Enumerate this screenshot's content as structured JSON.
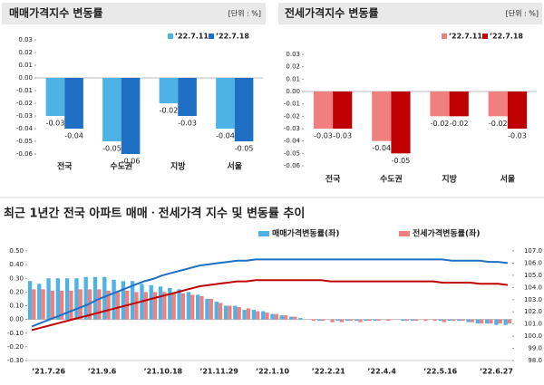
{
  "chart_data": [
    {
      "type": "bar",
      "title": "매매가격지수 변동률",
      "unit": "[단위 : %]",
      "categories": [
        "전국",
        "수도권",
        "지방",
        "서울"
      ],
      "series": [
        {
          "name": "’22.7.11",
          "color": "#4db3e6",
          "values": [
            -0.03,
            -0.05,
            -0.02,
            -0.04
          ]
        },
        {
          "name": "’22.7.18",
          "color": "#1f6fc4",
          "values": [
            -0.04,
            -0.06,
            -0.03,
            -0.05
          ]
        }
      ],
      "ylim": [
        -0.06,
        0.03
      ],
      "yticks": [
        0.03,
        0.02,
        0.01,
        {
          "value": 0,
          "label": "0.00"
        },
        -0.01,
        -0.02,
        -0.03,
        -0.04,
        -0.05,
        -0.06
      ]
    },
    {
      "type": "bar",
      "title": "전세가격지수 변동률",
      "unit": "[단위 : %]",
      "categories": [
        "전국",
        "수도권",
        "지방",
        "서울"
      ],
      "series": [
        {
          "name": "’22.7.11",
          "color": "#f08080",
          "values": [
            -0.03,
            -0.04,
            -0.02,
            -0.02
          ]
        },
        {
          "name": "’22.7.18",
          "color": "#c00000",
          "values": [
            -0.03,
            -0.05,
            -0.02,
            -0.03
          ]
        }
      ],
      "ylim": [
        -0.06,
        0.03
      ],
      "yticks": [
        0.03,
        0.02,
        0.01,
        {
          "value": 0,
          "label": "0.00"
        },
        -0.01,
        -0.02,
        -0.03,
        -0.04,
        -0.05,
        -0.06
      ]
    },
    {
      "type": "bar",
      "title": "최근 1년간 전국 아파트 매매ㆍ전세가격 지수 및 변동률 추이",
      "categories": [
        "’21.7.26",
        null,
        null,
        null,
        null,
        null,
        "’21.9.6",
        null,
        null,
        null,
        null,
        null,
        "’21.10.18",
        null,
        null,
        null,
        null,
        null,
        "’21.11.29",
        null,
        null,
        null,
        null,
        null,
        "’22.1.10",
        null,
        null,
        null,
        null,
        null,
        "’22.2.21",
        null,
        null,
        null,
        null,
        null,
        "’22.4.4",
        null,
        null,
        null,
        null,
        null,
        "’22.5.16",
        null,
        null,
        null,
        null,
        null,
        "’22.6.27",
        null,
        null,
        null
      ],
      "series": [
        {
          "name": "매매가격변동률(좌)",
          "color": "#4db3e6",
          "values": [
            0.28,
            0.26,
            0.3,
            0.3,
            0.3,
            0.3,
            0.31,
            0.31,
            0.31,
            0.29,
            0.28,
            0.28,
            0.26,
            0.25,
            0.24,
            0.23,
            0.22,
            0.2,
            0.18,
            0.15,
            0.13,
            0.1,
            0.1,
            0.07,
            0.07,
            0.06,
            0.04,
            0.03,
            0.02,
            0.01,
            0.0,
            -0.01,
            0.0,
            -0.01,
            -0.01,
            -0.01,
            -0.01,
            -0.01,
            0.0,
            0.0,
            -0.01,
            -0.01,
            0.0,
            0.0,
            -0.01,
            -0.01,
            -0.01,
            -0.02,
            -0.03,
            -0.03,
            -0.04,
            -0.04
          ]
        },
        {
          "name": "전세가격변동률(좌)",
          "color": "#f08080",
          "values": [
            0.22,
            0.22,
            0.21,
            0.21,
            0.21,
            0.22,
            0.22,
            0.22,
            0.21,
            0.2,
            0.21,
            0.2,
            0.2,
            0.2,
            0.2,
            0.19,
            0.19,
            0.18,
            0.17,
            0.15,
            0.12,
            0.1,
            0.09,
            0.08,
            0.06,
            0.05,
            0.04,
            0.03,
            0.02,
            0.0,
            -0.01,
            -0.01,
            -0.02,
            -0.02,
            -0.01,
            -0.02,
            -0.01,
            -0.01,
            -0.01,
            0.0,
            -0.01,
            -0.01,
            -0.01,
            -0.01,
            -0.02,
            -0.01,
            -0.01,
            -0.02,
            -0.03,
            -0.03,
            -0.03,
            -0.03
          ]
        },
        {
          "type": "line",
          "axis": "y2",
          "color": "#1f6fc4",
          "values": [
            100.8,
            101.1,
            101.4,
            101.7,
            102.0,
            102.3,
            102.6,
            103.0,
            103.3,
            103.6,
            103.9,
            104.2,
            104.5,
            104.7,
            105.0,
            105.2,
            105.4,
            105.6,
            105.8,
            105.9,
            106.0,
            106.1,
            106.2,
            106.2,
            106.3,
            106.3,
            106.3,
            106.3,
            106.3,
            106.3,
            106.3,
            106.3,
            106.3,
            106.3,
            106.3,
            106.3,
            106.3,
            106.3,
            106.3,
            106.3,
            106.3,
            106.3,
            106.3,
            106.3,
            106.3,
            106.2,
            106.2,
            106.2,
            106.2,
            106.1,
            106.1,
            106.0
          ]
        },
        {
          "type": "line",
          "axis": "y2",
          "color": "#c00000",
          "values": [
            100.5,
            100.7,
            100.9,
            101.1,
            101.3,
            101.5,
            101.7,
            101.9,
            102.1,
            102.3,
            102.5,
            102.7,
            102.9,
            103.1,
            103.3,
            103.5,
            103.7,
            103.9,
            104.1,
            104.2,
            104.3,
            104.4,
            104.5,
            104.5,
            104.6,
            104.6,
            104.6,
            104.6,
            104.6,
            104.6,
            104.6,
            104.6,
            104.5,
            104.5,
            104.5,
            104.5,
            104.5,
            104.5,
            104.5,
            104.5,
            104.5,
            104.5,
            104.5,
            104.5,
            104.4,
            104.4,
            104.4,
            104.4,
            104.3,
            104.3,
            104.3,
            104.2
          ]
        }
      ],
      "ylim": [
        -0.3,
        0.5
      ],
      "yticks": [
        {
          "value": 0.5,
          "label": "0.50"
        },
        {
          "value": 0.4,
          "label": "0.40"
        },
        {
          "value": 0.3,
          "label": "0.30"
        },
        {
          "value": 0.2,
          "label": "0.20"
        },
        {
          "value": 0.1,
          "label": "0.10"
        },
        {
          "value": 0,
          "label": "0.00"
        },
        {
          "value": -0.1,
          "label": "-0.10"
        },
        {
          "value": -0.2,
          "label": "-0.20"
        },
        {
          "value": -0.3,
          "label": "-0.30"
        }
      ],
      "y2lim": [
        98,
        107
      ],
      "y2ticks": [
        {
          "value": 107,
          "label": "107.0"
        },
        {
          "value": 106,
          "label": "106.0"
        },
        {
          "value": 105,
          "label": "105.0"
        },
        {
          "value": 104,
          "label": "104.0"
        },
        {
          "value": 103,
          "label": "103.0"
        },
        {
          "value": 102,
          "label": "102.0"
        },
        {
          "value": 101,
          "label": "101.0"
        },
        {
          "value": 100,
          "label": "100.0"
        },
        {
          "value": 99,
          "label": "99.0"
        },
        {
          "value": 98,
          "label": "98.0"
        }
      ]
    }
  ]
}
